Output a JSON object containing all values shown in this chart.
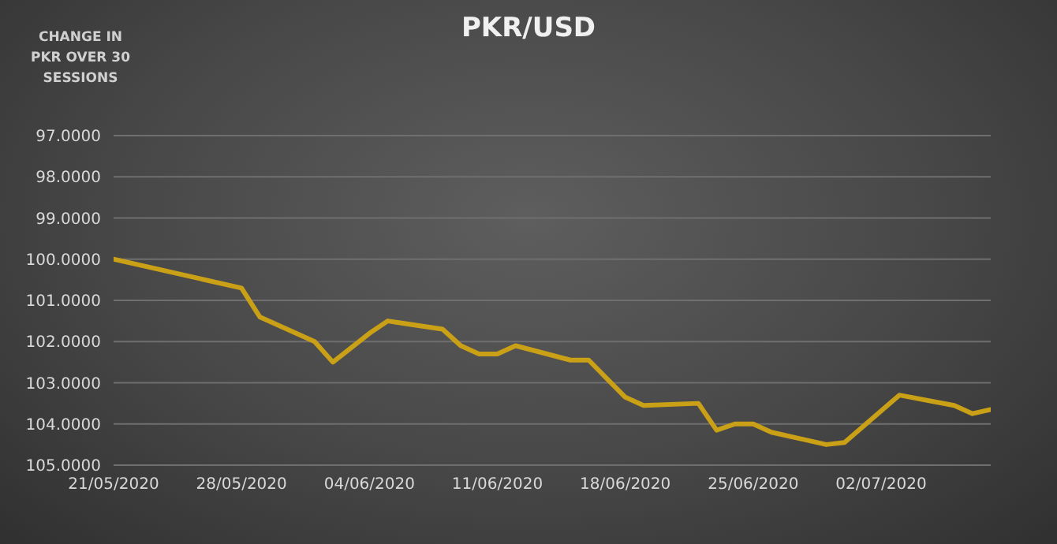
{
  "chart_data": {
    "type": "line",
    "title": "PKR/USD",
    "ylabel": "CHANGE IN PKR OVER 30 SESSIONS",
    "x": [
      "2020-05-21",
      "2020-05-28",
      "2020-05-29",
      "2020-06-01",
      "2020-06-02",
      "2020-06-04",
      "2020-06-05",
      "2020-06-08",
      "2020-06-09",
      "2020-06-10",
      "2020-06-11",
      "2020-06-12",
      "2020-06-15",
      "2020-06-16",
      "2020-06-18",
      "2020-06-19",
      "2020-06-22",
      "2020-06-23",
      "2020-06-24",
      "2020-06-25",
      "2020-06-26",
      "2020-06-29",
      "2020-06-30",
      "2020-07-03",
      "2020-07-06",
      "2020-07-07",
      "2020-07-08"
    ],
    "series": [
      {
        "color": "#c9a016",
        "values": [
          100.0,
          100.7,
          101.4,
          102.0,
          102.5,
          101.8,
          101.5,
          101.7,
          102.1,
          102.3,
          102.3,
          102.1,
          102.45,
          102.45,
          103.35,
          103.55,
          103.5,
          104.15,
          104.0,
          104.0,
          104.2,
          104.5,
          104.45,
          103.3,
          103.55,
          103.75,
          103.65
        ]
      }
    ],
    "xlim": [
      "2020-05-21",
      "2020-07-08"
    ],
    "xticks": [
      {
        "value": "2020-05-21",
        "label": "21/05/2020"
      },
      {
        "value": "2020-05-28",
        "label": "28/05/2020"
      },
      {
        "value": "2020-06-04",
        "label": "04/06/2020"
      },
      {
        "value": "2020-06-11",
        "label": "11/06/2020"
      },
      {
        "value": "2020-06-18",
        "label": "18/06/2020"
      },
      {
        "value": "2020-06-25",
        "label": "25/06/2020"
      },
      {
        "value": "2020-07-02",
        "label": "02/07/2020"
      }
    ],
    "ylim": [
      105,
      97
    ],
    "yticks": [
      {
        "value": 97,
        "label": "97.0000"
      },
      {
        "value": 98,
        "label": "98.0000"
      },
      {
        "value": 99,
        "label": "99.0000"
      },
      {
        "value": 100,
        "label": "100.0000"
      },
      {
        "value": 101,
        "label": "101.0000"
      },
      {
        "value": 102,
        "label": "102.0000"
      },
      {
        "value": 103,
        "label": "103.0000"
      },
      {
        "value": 104,
        "label": "104.0000"
      },
      {
        "value": 105,
        "label": "105.0000"
      }
    ],
    "grid": "y",
    "legend": false,
    "marker": "none",
    "line_style": "solid"
  }
}
